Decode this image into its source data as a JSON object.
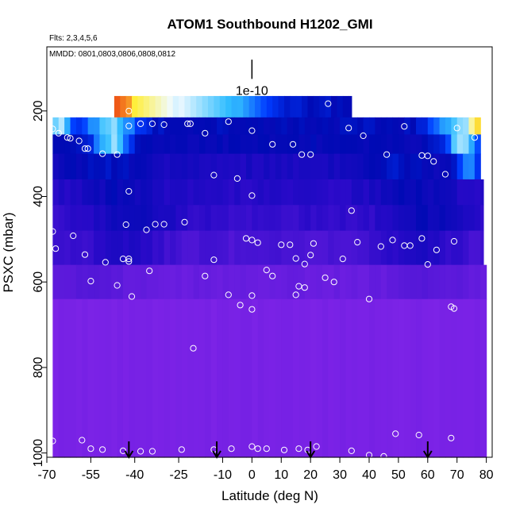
{
  "chart_data": {
    "type": "heatmap",
    "title": "ATOM1 Southbound H1202_GMI",
    "flights_note": "Flts: 2,3,4,5,6",
    "dates_note": "MMDD: 0801,0803,0806,0808,0812",
    "xlabel": "Latitude (deg N)",
    "ylabel": "PSXC (mbar)",
    "xlim": [
      -70,
      82
    ],
    "ylim": [
      1010,
      50
    ],
    "y_reversed": true,
    "x_ticks": [
      -70,
      -55,
      -40,
      -25,
      -10,
      0,
      10,
      20,
      30,
      40,
      50,
      60,
      70,
      80
    ],
    "y_ticks": [
      200,
      400,
      600,
      800,
      1000
    ],
    "grid": false,
    "scale_bar": {
      "label": "1e-10",
      "top": 80,
      "bottom": 125,
      "x": 0
    },
    "colors": {
      "background_field": "#8a2be2",
      "low": "#7f24e6",
      "mid": "#1a0bd0",
      "high_blue": "#0033ff",
      "cyan": "#33ccff",
      "yellow": "#ffee33",
      "red": "#ee0000",
      "marker": "#ffffff"
    },
    "bands": [
      {
        "pmin": 165,
        "pmax": 215,
        "xmin": -47,
        "xmax": 34,
        "kind": "top"
      },
      {
        "pmin": 215,
        "pmax": 255,
        "xmin": -68,
        "xmax": 78,
        "kind": "upper"
      },
      {
        "pmin": 255,
        "pmax": 300,
        "xmin": -68,
        "xmax": 78,
        "kind": "upper2"
      },
      {
        "pmin": 300,
        "pmax": 360,
        "xmin": -68,
        "xmax": 78,
        "kind": "mid1"
      },
      {
        "pmin": 360,
        "pmax": 420,
        "xmin": -68,
        "xmax": 79,
        "kind": "mid2"
      },
      {
        "pmin": 420,
        "pmax": 480,
        "xmin": -68,
        "xmax": 79,
        "kind": "mid3"
      },
      {
        "pmin": 480,
        "pmax": 560,
        "xmin": -68,
        "xmax": 79,
        "kind": "mid4"
      },
      {
        "pmin": 560,
        "pmax": 640,
        "xmin": -68,
        "xmax": 80,
        "kind": "low1"
      },
      {
        "pmin": 640,
        "pmax": 1010,
        "xmin": -68,
        "xmax": 80,
        "kind": "low2"
      }
    ],
    "points": [
      [
        -42,
        200
      ],
      [
        -42,
        235
      ],
      [
        -38,
        230
      ],
      [
        -34,
        230
      ],
      [
        -30,
        232
      ],
      [
        -22,
        230
      ],
      [
        -21,
        230
      ],
      [
        -16,
        252
      ],
      [
        -8,
        225
      ],
      [
        0,
        246
      ],
      [
        7,
        278
      ],
      [
        14,
        278
      ],
      [
        17,
        302
      ],
      [
        20,
        302
      ],
      [
        26,
        183
      ],
      [
        33,
        240
      ],
      [
        38,
        258
      ],
      [
        46,
        302
      ],
      [
        52,
        236
      ],
      [
        58,
        304
      ],
      [
        60,
        305
      ],
      [
        62,
        318
      ],
      [
        66,
        348
      ],
      [
        70,
        240
      ],
      [
        76,
        262
      ],
      [
        -68,
        242
      ],
      [
        -66,
        252
      ],
      [
        -63,
        262
      ],
      [
        -62,
        264
      ],
      [
        -59,
        270
      ],
      [
        -57,
        288
      ],
      [
        -56,
        288
      ],
      [
        -51,
        300
      ],
      [
        -46,
        302
      ],
      [
        -42,
        388
      ],
      [
        -36,
        478
      ],
      [
        -33,
        465
      ],
      [
        -30,
        465
      ],
      [
        -23,
        460
      ],
      [
        -13,
        350
      ],
      [
        -5,
        358
      ],
      [
        0,
        398
      ],
      [
        -2,
        498
      ],
      [
        0,
        502
      ],
      [
        2,
        508
      ],
      [
        5,
        572
      ],
      [
        7,
        586
      ],
      [
        10,
        513
      ],
      [
        13,
        513
      ],
      [
        15,
        545
      ],
      [
        16,
        610
      ],
      [
        18,
        558
      ],
      [
        20,
        537
      ],
      [
        21,
        510
      ],
      [
        25,
        590
      ],
      [
        28,
        600
      ],
      [
        31,
        546
      ],
      [
        36,
        507
      ],
      [
        40,
        640
      ],
      [
        44,
        517
      ],
      [
        48,
        502
      ],
      [
        52,
        515
      ],
      [
        54,
        515
      ],
      [
        58,
        498
      ],
      [
        60,
        559
      ],
      [
        63,
        525
      ],
      [
        69,
        505
      ],
      [
        -68,
        482
      ],
      [
        -67,
        522
      ],
      [
        -61,
        492
      ],
      [
        -57,
        536
      ],
      [
        -55,
        598
      ],
      [
        -50,
        554
      ],
      [
        -46,
        608
      ],
      [
        -44,
        546
      ],
      [
        -42,
        552
      ],
      [
        -41,
        634
      ],
      [
        -35,
        574
      ],
      [
        -16,
        586
      ],
      [
        -13,
        548
      ],
      [
        -8,
        630
      ],
      [
        -4,
        654
      ],
      [
        0,
        632
      ],
      [
        0,
        664
      ],
      [
        15,
        630
      ],
      [
        18,
        613
      ],
      [
        34,
        433
      ],
      [
        -42,
        546
      ],
      [
        -43,
        466
      ],
      [
        -20,
        755
      ],
      [
        68,
        658
      ],
      [
        69,
        662
      ],
      [
        -68,
        972
      ],
      [
        -58,
        970
      ],
      [
        -55,
        990
      ],
      [
        -51,
        992
      ],
      [
        -44,
        995
      ],
      [
        -38,
        996
      ],
      [
        -34,
        996
      ],
      [
        -24,
        992
      ],
      [
        -13,
        992
      ],
      [
        -7,
        990
      ],
      [
        0,
        985
      ],
      [
        2,
        990
      ],
      [
        5,
        990
      ],
      [
        11,
        993
      ],
      [
        16,
        990
      ],
      [
        19,
        993
      ],
      [
        22,
        985
      ],
      [
        34,
        995
      ],
      [
        40,
        1005
      ],
      [
        45,
        1008
      ],
      [
        49,
        955
      ],
      [
        57,
        958
      ],
      [
        68,
        965
      ]
    ],
    "arrows_x": [
      -42,
      -12,
      20,
      60
    ]
  }
}
